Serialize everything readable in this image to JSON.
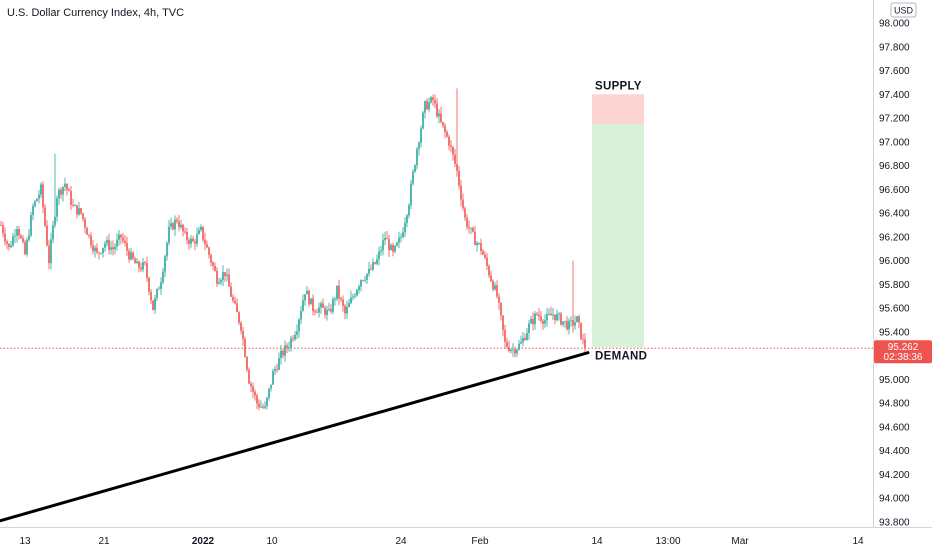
{
  "header": {
    "symbol_title": "U.S. Dollar Currency Index, 4h, TVC"
  },
  "chart_data": {
    "type": "candlestick",
    "title": "U.S. Dollar Currency Index, 4h, TVC",
    "currency_label": "USD",
    "ylim": [
      93.7,
      98.15
    ],
    "y_ticks": [
      "98.000",
      "97.800",
      "97.600",
      "97.400",
      "97.200",
      "97.000",
      "96.800",
      "96.600",
      "96.400",
      "96.200",
      "96.000",
      "95.800",
      "95.600",
      "95.400",
      "95.200",
      "95.000",
      "94.800",
      "94.600",
      "94.400",
      "94.200",
      "94.000",
      "93.800"
    ],
    "x_ticks": [
      {
        "label": "13",
        "bold": false
      },
      {
        "label": "21",
        "bold": false
      },
      {
        "label": "2022",
        "bold": true
      },
      {
        "label": "10",
        "bold": false
      },
      {
        "label": "24",
        "bold": false
      },
      {
        "label": "Feb",
        "bold": false
      },
      {
        "label": "14",
        "bold": false
      },
      {
        "label": "13:00",
        "bold": false
      },
      {
        "label": "Mar",
        "bold": false
      },
      {
        "label": "14",
        "bold": false
      }
    ],
    "bullish_color": "#26a69a",
    "bearish_color": "#ef5350",
    "last_price": {
      "value": 95.262,
      "label": "95.262",
      "countdown": "02:38:36",
      "color": "#ef5350"
    },
    "supply_zone": {
      "label": "SUPPLY",
      "top": 97.4,
      "bottom": 97.15,
      "color": "#fcd4d4"
    },
    "target_zone": {
      "top": 97.15,
      "bottom": 95.27,
      "color": "#d9f0d9"
    },
    "demand_label": "DEMAND",
    "trendline": {
      "start": 93.81,
      "end": 95.225,
      "color": "#000000"
    },
    "waypoints": [
      [
        0,
        96.3
      ],
      [
        4,
        96.1
      ],
      [
        8,
        96.3
      ],
      [
        12,
        96.05
      ],
      [
        16,
        96.45
      ],
      [
        20,
        96.6
      ],
      [
        24,
        96.0
      ],
      [
        28,
        96.55
      ],
      [
        32,
        96.65
      ],
      [
        36,
        96.45
      ],
      [
        40,
        96.4
      ],
      [
        44,
        96.2
      ],
      [
        48,
        96.05
      ],
      [
        52,
        96.15
      ],
      [
        56,
        96.1
      ],
      [
        60,
        96.2
      ],
      [
        64,
        96.05
      ],
      [
        68,
        95.95
      ],
      [
        72,
        95.95
      ],
      [
        76,
        95.6
      ],
      [
        80,
        95.85
      ],
      [
        84,
        96.25
      ],
      [
        88,
        96.35
      ],
      [
        92,
        96.2
      ],
      [
        96,
        96.15
      ],
      [
        100,
        96.25
      ],
      [
        104,
        96.05
      ],
      [
        108,
        95.85
      ],
      [
        112,
        95.9
      ],
      [
        116,
        95.65
      ],
      [
        120,
        95.45
      ],
      [
        124,
        95.0
      ],
      [
        128,
        94.8
      ],
      [
        132,
        94.75
      ],
      [
        136,
        95.05
      ],
      [
        140,
        95.2
      ],
      [
        144,
        95.3
      ],
      [
        148,
        95.45
      ],
      [
        152,
        95.75
      ],
      [
        156,
        95.6
      ],
      [
        160,
        95.6
      ],
      [
        164,
        95.55
      ],
      [
        168,
        95.75
      ],
      [
        172,
        95.55
      ],
      [
        176,
        95.7
      ],
      [
        180,
        95.85
      ],
      [
        184,
        95.9
      ],
      [
        188,
        96.0
      ],
      [
        192,
        96.2
      ],
      [
        196,
        96.05
      ],
      [
        200,
        96.2
      ],
      [
        204,
        96.5
      ],
      [
        208,
        96.95
      ],
      [
        212,
        97.3
      ],
      [
        216,
        97.35
      ],
      [
        220,
        97.15
      ],
      [
        224,
        97.0
      ],
      [
        228,
        96.75
      ],
      [
        232,
        96.35
      ],
      [
        236,
        96.2
      ],
      [
        240,
        96.1
      ],
      [
        244,
        95.9
      ],
      [
        248,
        95.7
      ],
      [
        252,
        95.3
      ],
      [
        256,
        95.25
      ],
      [
        260,
        95.3
      ],
      [
        264,
        95.45
      ],
      [
        268,
        95.55
      ],
      [
        272,
        95.5
      ],
      [
        276,
        95.55
      ],
      [
        280,
        95.5
      ],
      [
        284,
        95.45
      ],
      [
        288,
        95.5
      ],
      [
        292,
        95.25
      ]
    ]
  }
}
